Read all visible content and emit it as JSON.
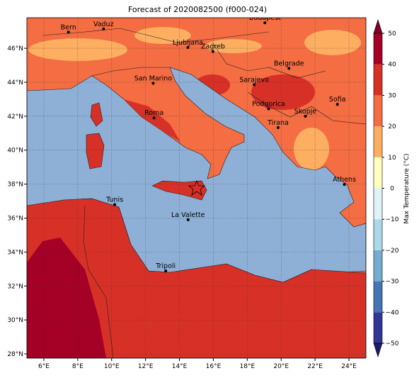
{
  "title": "Forecast of 2020082500 (f000-024)",
  "map": {
    "xlim": [
      5,
      25
    ],
    "ylim": [
      27.75,
      47.8
    ],
    "xticks": [
      {
        "value": 6,
        "label": "6°E"
      },
      {
        "value": 8,
        "label": "8°E"
      },
      {
        "value": 10,
        "label": "10°E"
      },
      {
        "value": 12,
        "label": "12°E"
      },
      {
        "value": 14,
        "label": "14°E"
      },
      {
        "value": 16,
        "label": "16°E"
      },
      {
        "value": 18,
        "label": "18°E"
      },
      {
        "value": 20,
        "label": "20°E"
      },
      {
        "value": 22,
        "label": "22°E"
      },
      {
        "value": 24,
        "label": "24°E"
      }
    ],
    "yticks": [
      {
        "value": 28,
        "label": "28°N"
      },
      {
        "value": 30,
        "label": "30°N"
      },
      {
        "value": 32,
        "label": "32°N"
      },
      {
        "value": 34,
        "label": "34°N"
      },
      {
        "value": 36,
        "label": "36°N"
      },
      {
        "value": 38,
        "label": "38°N"
      },
      {
        "value": 40,
        "label": "40°N"
      },
      {
        "value": 42,
        "label": "42°N"
      },
      {
        "value": 44,
        "label": "44°N"
      },
      {
        "value": 46,
        "label": "46°N"
      }
    ],
    "cities": [
      {
        "name": "Bern",
        "lon": 7.45,
        "lat": 46.95
      },
      {
        "name": "Vaduz",
        "lon": 9.52,
        "lat": 47.14
      },
      {
        "name": "Budapest",
        "lon": 19.04,
        "lat": 47.5
      },
      {
        "name": "Ljubljana",
        "lon": 14.5,
        "lat": 46.05
      },
      {
        "name": "Zagreb",
        "lon": 15.98,
        "lat": 45.81
      },
      {
        "name": "Belgrade",
        "lon": 20.46,
        "lat": 44.82
      },
      {
        "name": "San Marino",
        "lon": 12.45,
        "lat": 43.94
      },
      {
        "name": "Sarajevo",
        "lon": 18.41,
        "lat": 43.86
      },
      {
        "name": "Sofia",
        "lon": 23.32,
        "lat": 42.7
      },
      {
        "name": "Podgorica",
        "lon": 19.26,
        "lat": 42.44
      },
      {
        "name": "Skopje",
        "lon": 21.43,
        "lat": 42.0
      },
      {
        "name": "Roma",
        "lon": 12.5,
        "lat": 41.9
      },
      {
        "name": "Tirana",
        "lon": 19.82,
        "lat": 41.33
      },
      {
        "name": "Athens",
        "lon": 23.73,
        "lat": 37.98
      },
      {
        "name": "Tunis",
        "lon": 10.18,
        "lat": 36.8
      },
      {
        "name": "La Valette",
        "lon": 14.51,
        "lat": 35.9
      },
      {
        "name": "Tripoli",
        "lon": 13.19,
        "lat": 32.89
      }
    ]
  },
  "colorbar": {
    "label": "Max Temperature (°C)",
    "ticks": [
      {
        "value": -50,
        "label": "−50"
      },
      {
        "value": -40,
        "label": "−40"
      },
      {
        "value": -30,
        "label": "−30"
      },
      {
        "value": -20,
        "label": "−20"
      },
      {
        "value": -10,
        "label": "−10"
      },
      0,
      10,
      20,
      30,
      40,
      50
    ],
    "colors": [
      "#313695",
      "#4575b4",
      "#74add1",
      "#abd9e9",
      "#e0f3f8",
      "#ffffbf",
      "#fdae61",
      "#f46d43",
      "#d73027",
      "#a50026"
    ],
    "under_color": "#1b1b6b",
    "over_color": "#800026"
  }
}
